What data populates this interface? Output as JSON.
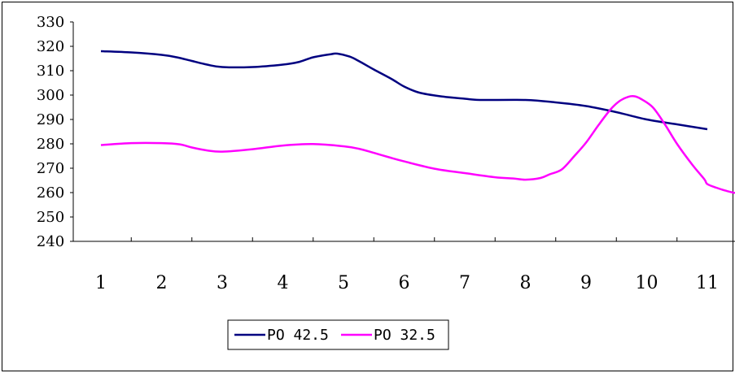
{
  "chart_data": {
    "type": "line",
    "title": "",
    "xlabel": "",
    "ylabel": "",
    "x": [
      1,
      2,
      3,
      4,
      5,
      6,
      7,
      8,
      9,
      10,
      11
    ],
    "ylim": [
      240,
      330
    ],
    "yticks": [
      240,
      250,
      260,
      270,
      280,
      290,
      300,
      310,
      320,
      330
    ],
    "grid": false,
    "legend_position": "bottom-left",
    "series": [
      {
        "name": "PO 42.5",
        "color": "#000080",
        "points": [
          [
            1,
            318
          ],
          [
            1.5,
            317.5
          ],
          [
            2,
            316.5
          ],
          [
            2.25,
            315.5
          ],
          [
            2.5,
            314
          ],
          [
            2.75,
            312.5
          ],
          [
            3,
            311.5
          ],
          [
            3.5,
            311.5
          ],
          [
            4,
            312.5
          ],
          [
            4.25,
            313.5
          ],
          [
            4.5,
            315.5
          ],
          [
            4.8,
            316.8
          ],
          [
            4.9,
            317
          ],
          [
            5.1,
            315.8
          ],
          [
            5.25,
            314
          ],
          [
            5.5,
            310.5
          ],
          [
            5.8,
            306.5
          ],
          [
            6,
            303.5
          ],
          [
            6.25,
            301
          ],
          [
            6.6,
            299.5
          ],
          [
            7,
            298.5
          ],
          [
            7.25,
            298
          ],
          [
            8,
            298
          ],
          [
            8.5,
            297
          ],
          [
            9,
            295.5
          ],
          [
            9.5,
            293
          ],
          [
            10,
            290
          ],
          [
            10.5,
            288
          ],
          [
            11,
            286
          ]
        ]
      },
      {
        "name": "PO 32.5",
        "color": "#FF00FF",
        "points": [
          [
            1,
            279.5
          ],
          [
            1.5,
            280.3
          ],
          [
            2,
            280.3
          ],
          [
            2.3,
            279.8
          ],
          [
            2.5,
            278.5
          ],
          [
            2.75,
            277.3
          ],
          [
            3,
            276.8
          ],
          [
            3.5,
            277.8
          ],
          [
            4,
            279.3
          ],
          [
            4.5,
            279.9
          ],
          [
            5,
            279
          ],
          [
            5.25,
            278
          ],
          [
            5.5,
            276.3
          ],
          [
            5.75,
            274.5
          ],
          [
            6,
            272.8
          ],
          [
            6.5,
            269.8
          ],
          [
            7,
            268
          ],
          [
            7.5,
            266.3
          ],
          [
            7.8,
            265.8
          ],
          [
            8,
            265.3
          ],
          [
            8.25,
            266
          ],
          [
            8.4,
            267.5
          ],
          [
            8.6,
            269.5
          ],
          [
            8.8,
            274.8
          ],
          [
            9,
            280.5
          ],
          [
            9.2,
            287.5
          ],
          [
            9.4,
            294
          ],
          [
            9.55,
            297.5
          ],
          [
            9.7,
            299.3
          ],
          [
            9.8,
            299.5
          ],
          [
            9.9,
            298.5
          ],
          [
            10.1,
            295
          ],
          [
            10.3,
            288
          ],
          [
            10.5,
            280
          ],
          [
            10.75,
            271.5
          ],
          [
            10.95,
            265.5
          ],
          [
            11,
            263.5
          ],
          [
            11.15,
            262
          ],
          [
            11.3,
            260.8
          ],
          [
            11.5,
            259.7
          ],
          [
            11.7,
            259.7
          ],
          [
            12,
            260.2
          ],
          [
            12.3,
            260.2
          ]
        ]
      }
    ]
  }
}
